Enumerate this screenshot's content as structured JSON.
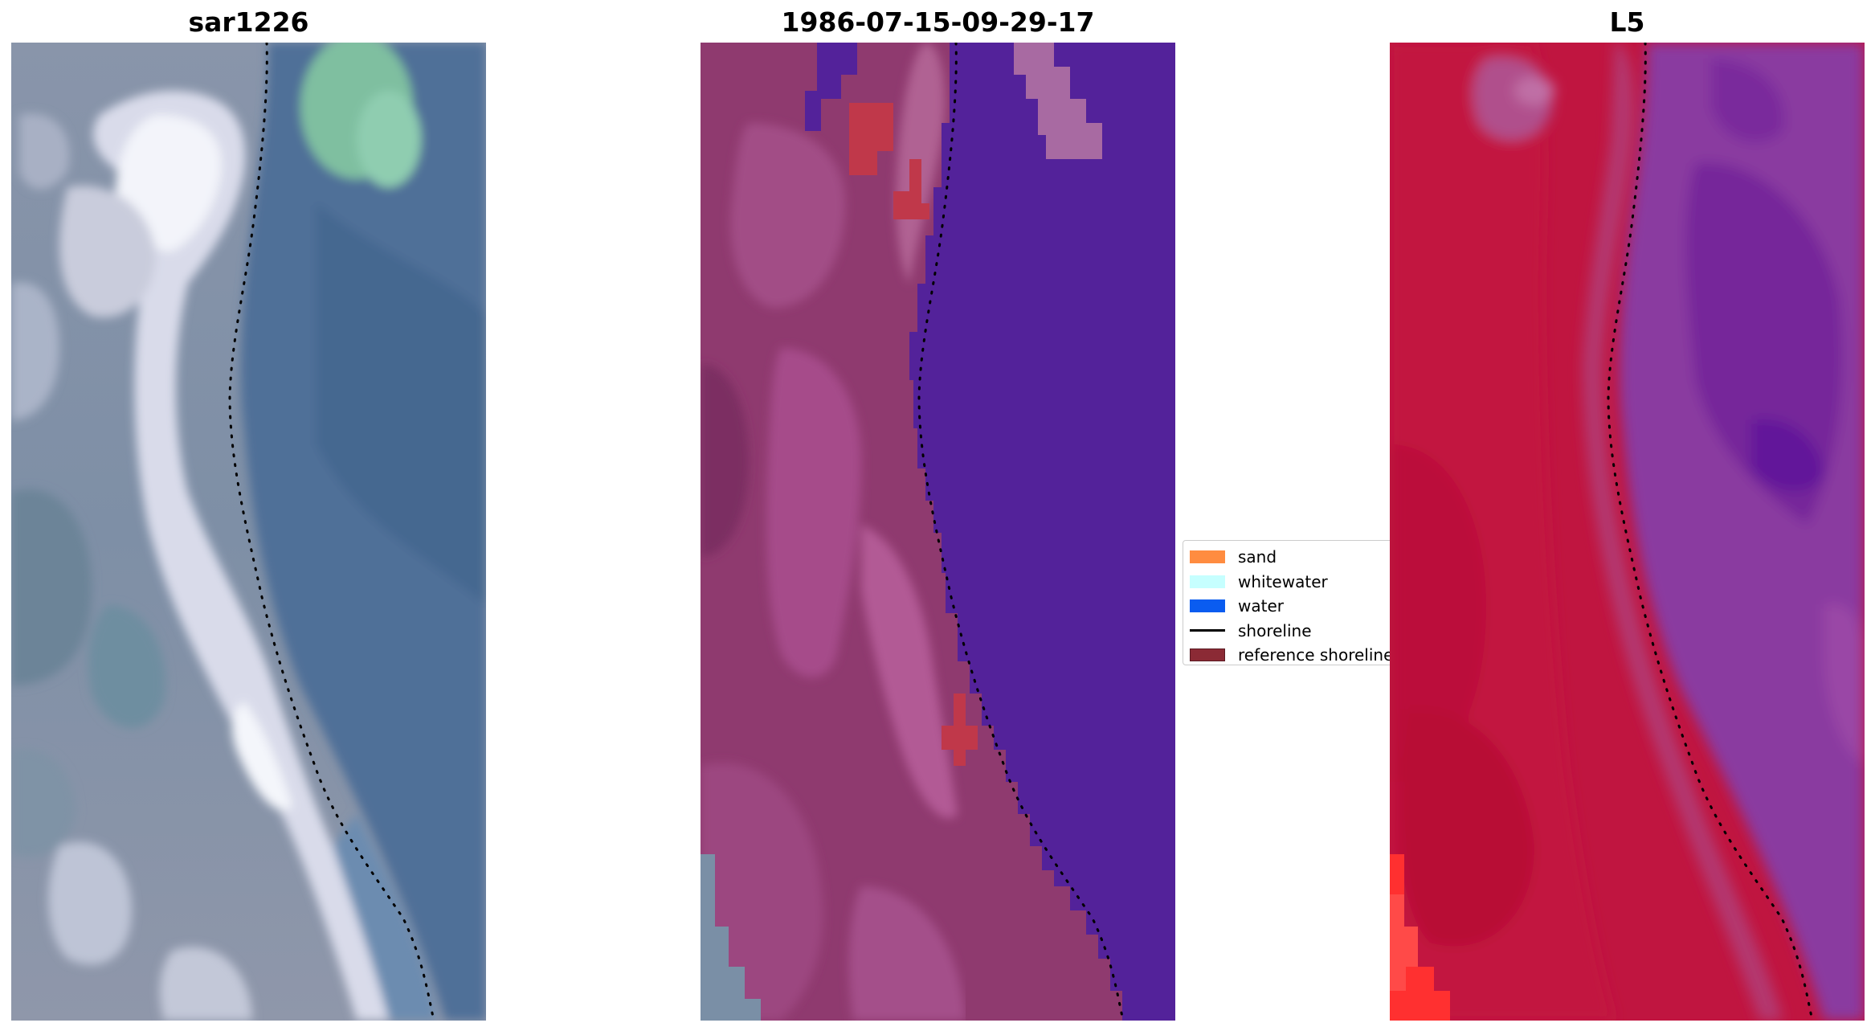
{
  "panels": [
    {
      "title": "sar1226"
    },
    {
      "title": "1986-07-15-09-29-17"
    },
    {
      "title": "L5"
    }
  ],
  "legend": {
    "items": [
      {
        "label": "sand",
        "color": "#ff8c40",
        "kind": "patch"
      },
      {
        "label": "whitewater",
        "color": "#c6ffff",
        "kind": "patch"
      },
      {
        "label": "water",
        "color": "#0a5cf0",
        "kind": "patch"
      },
      {
        "label": "shoreline",
        "color": "#000000",
        "kind": "line"
      },
      {
        "label": "reference shoreline",
        "color": "#8b2a35",
        "kind": "patch"
      }
    ]
  },
  "colors": {
    "rgb_land": "#8c95a8",
    "rgb_water": "#4c6f99",
    "rgb_bright_sand": "#eceef6",
    "rgb_vegetation": "#7fbfa0",
    "class_land": "#8f3a6f",
    "class_water": "#53229a",
    "class_whitewater": "#a86aa2",
    "class_red_pixels": "#c0384a",
    "l5_land": "#c01540",
    "l5_water": "#8a3aa0",
    "l5_bright_red": "#ff3030"
  }
}
